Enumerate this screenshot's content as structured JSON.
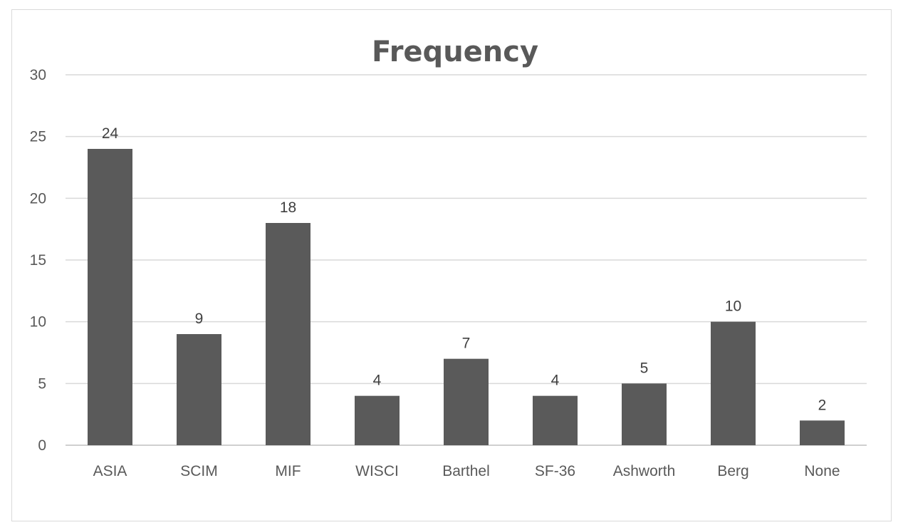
{
  "chart_data": {
    "type": "bar",
    "title": "Frequency",
    "categories": [
      "ASIA",
      "SCIM",
      "MIF",
      "WISCI",
      "Barthel",
      "SF-36",
      "Ashworth",
      "Berg",
      "None"
    ],
    "values": [
      24,
      9,
      18,
      4,
      7,
      4,
      5,
      10,
      2
    ],
    "xlabel": "",
    "ylabel": "",
    "ylim": [
      0,
      30
    ],
    "yticks": [
      0,
      5,
      10,
      15,
      20,
      25,
      30
    ],
    "grid": true,
    "legend": "none",
    "bar_color": "#5a5a5a",
    "data_labels": true
  }
}
